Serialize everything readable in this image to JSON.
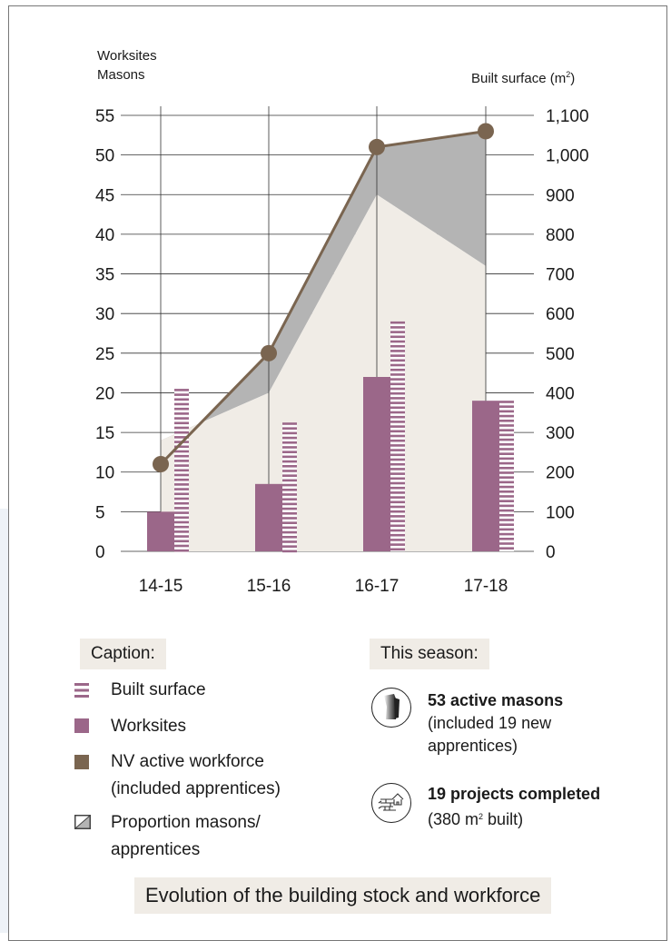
{
  "axis": {
    "left_title_1": "Worksites",
    "left_title_2": "Masons",
    "right_title": "Built surface (m",
    "right_title_sup": "2",
    "right_title_end": ")"
  },
  "chart_data": {
    "type": "bar",
    "categories": [
      "14-15",
      "15-16",
      "16-17",
      "17-18"
    ],
    "left_axis": {
      "ylim": [
        0,
        55
      ],
      "ticks": [
        "0",
        "5",
        "10",
        "15",
        "20",
        "25",
        "30",
        "35",
        "40",
        "45",
        "50",
        "55"
      ]
    },
    "right_axis": {
      "ylim": [
        0,
        1100
      ],
      "ticks": [
        "0",
        "100",
        "200",
        "300",
        "400",
        "500",
        "600",
        "700",
        "800",
        "900",
        "1,000",
        "1,100"
      ]
    },
    "series": [
      {
        "name": "Worksites",
        "kind": "bar",
        "axis": "left",
        "values": [
          5,
          8.5,
          22,
          19
        ],
        "color": "#9b6789"
      },
      {
        "name": "Built surface",
        "kind": "striped-bar",
        "axis": "right",
        "values": [
          410,
          325,
          580,
          380
        ],
        "color": "#9b6789"
      },
      {
        "name": "NV active workforce (included apprentices)",
        "kind": "line",
        "axis": "left",
        "values": [
          11,
          25,
          51,
          53
        ],
        "color": "#7a6550"
      },
      {
        "name": "Masons",
        "kind": "area",
        "axis": "left",
        "values": [
          14,
          20,
          45,
          36
        ],
        "color": "#f0ece6"
      }
    ],
    "proportion_fill_color": "#b4b4b4",
    "grid": true
  },
  "caption": {
    "title": "Caption:",
    "items": [
      {
        "text": "Built surface"
      },
      {
        "text": "Worksites"
      },
      {
        "text": "NV active workforce"
      },
      {
        "text": "(included apprentices)"
      },
      {
        "text": "Proportion masons/"
      },
      {
        "text": "apprentices"
      }
    ]
  },
  "season": {
    "title": "This season:",
    "stat1_bold": "53 active masons",
    "stat1_line2": "(included 19 new",
    "stat1_line3": "apprentices)",
    "stat2_bold": "19 projects completed",
    "stat2_line2_a": "(380 m",
    "stat2_line2_sup": "2",
    "stat2_line2_b": " built)"
  },
  "footer": {
    "title": "Evolution of the building stock and workforce"
  },
  "icons": [
    "mason-portrait-icon",
    "brick-wall-house-icon"
  ]
}
